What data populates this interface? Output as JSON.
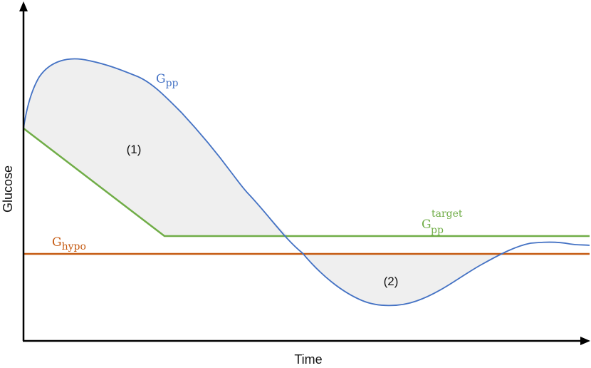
{
  "chart_data": {
    "type": "line",
    "title": "",
    "xlabel": "Time",
    "ylabel": "Glucose",
    "grid": false,
    "legend": "none",
    "x_ticks": "none",
    "y_ticks": "none",
    "series": [
      {
        "name": "G",
        "subscript": "pp",
        "superscript": "",
        "color": "#4472C4",
        "style": "curve"
      },
      {
        "name": "G",
        "subscript": "pp",
        "superscript": "target",
        "color": "#70AD47",
        "style": "piecewise-linear"
      },
      {
        "name": "G",
        "subscript": "hypo",
        "superscript": "",
        "color": "#C55A11",
        "style": "horizontal-threshold"
      }
    ],
    "regions": [
      {
        "label": "(1)",
        "between": "G_pp above G_pp_target",
        "fill": "#EFEFEF"
      },
      {
        "label": "(2)",
        "between": "G_pp below G_hypo",
        "fill": "#EFEFEF"
      }
    ],
    "axis_color": "#000000"
  }
}
